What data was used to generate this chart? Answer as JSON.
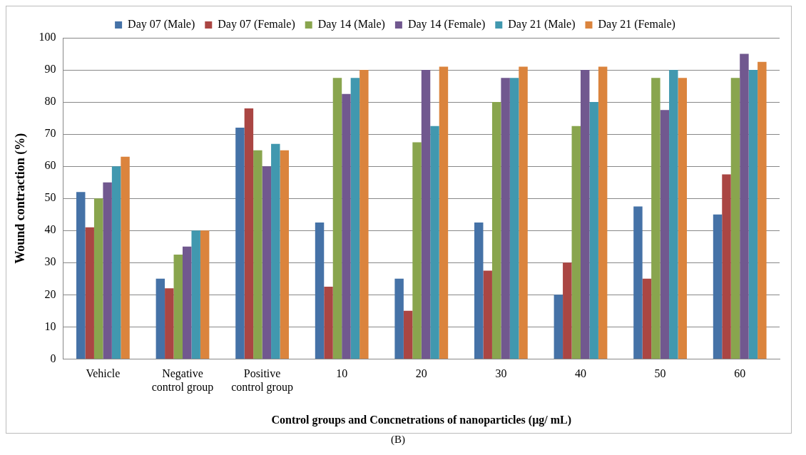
{
  "chart_data": {
    "type": "bar",
    "xlabel": "Control groups and Concnetrations of nanoparticles (µg/ mL)",
    "ylabel": "Wound contraction (%)",
    "categories": [
      "Vehicle",
      "Negative control group",
      "Positive control group",
      "10",
      "20",
      "30",
      "40",
      "50",
      "60"
    ],
    "series": [
      {
        "name": "Day 07 (Male)",
        "color": "#4572a7",
        "values": [
          52,
          25,
          72,
          42.5,
          25,
          42.5,
          20,
          47.5,
          45
        ]
      },
      {
        "name": "Day 07 (Female)",
        "color": "#aa4643",
        "values": [
          41,
          22,
          78,
          22.5,
          15,
          27.5,
          30,
          25,
          57.5
        ]
      },
      {
        "name": "Day 14 (Male)",
        "color": "#89a54e",
        "values": [
          50,
          32.5,
          65,
          87.5,
          67.5,
          80,
          72.5,
          87.5,
          87.5
        ]
      },
      {
        "name": "Day 14 (Female)",
        "color": "#71588f",
        "values": [
          55,
          35,
          60,
          82.5,
          90,
          87.5,
          90,
          77.5,
          95
        ]
      },
      {
        "name": "Day 21 (Male)",
        "color": "#4198af",
        "values": [
          60,
          40,
          67,
          87.5,
          72.5,
          87.5,
          80,
          90,
          90
        ]
      },
      {
        "name": "Day 21 (Female)",
        "color": "#db843d",
        "values": [
          63,
          40,
          65,
          90,
          91,
          91,
          91,
          87.5,
          92.5
        ]
      }
    ],
    "ylim": [
      0,
      100
    ],
    "yticks": [
      0,
      10,
      20,
      30,
      40,
      50,
      60,
      70,
      80,
      90,
      100
    ],
    "grid": "y",
    "legend": "top",
    "annotations": [
      "(B)"
    ]
  }
}
